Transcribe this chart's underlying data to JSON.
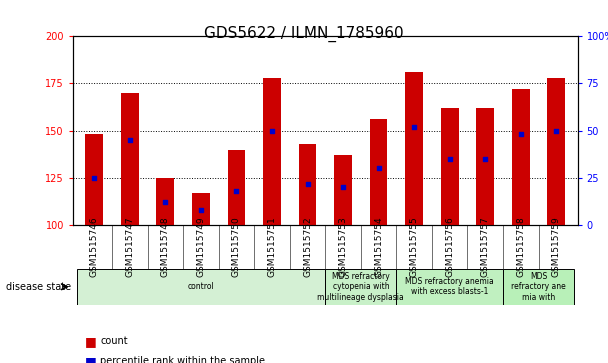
{
  "title": "GDS5622 / ILMN_1785960",
  "samples": [
    "GSM1515746",
    "GSM1515747",
    "GSM1515748",
    "GSM1515749",
    "GSM1515750",
    "GSM1515751",
    "GSM1515752",
    "GSM1515753",
    "GSM1515754",
    "GSM1515755",
    "GSM1515756",
    "GSM1515757",
    "GSM1515758",
    "GSM1515759"
  ],
  "counts": [
    148,
    170,
    125,
    117,
    140,
    178,
    143,
    137,
    156,
    181,
    162,
    162,
    172,
    178
  ],
  "percentile_ranks": [
    25,
    45,
    12,
    8,
    18,
    50,
    22,
    20,
    30,
    52,
    35,
    35,
    48,
    50
  ],
  "ylim_left": [
    100,
    200
  ],
  "ylim_right": [
    0,
    100
  ],
  "yticks_left": [
    100,
    125,
    150,
    175,
    200
  ],
  "yticks_right": [
    0,
    25,
    50,
    75,
    100
  ],
  "bar_color": "#cc0000",
  "dot_color": "#0000cc",
  "bar_width": 0.5,
  "bg_color": "#e8e8e8",
  "plot_bg": "#ffffff",
  "grid_color": "#000000",
  "disease_groups": [
    {
      "label": "control",
      "start": 0,
      "end": 7,
      "color": "#d4f0d4"
    },
    {
      "label": "MDS refractory\ncytopenia with\nmultilineage dysplasia",
      "start": 7,
      "end": 9,
      "color": "#c8f0c8"
    },
    {
      "label": "MDS refractory anemia\nwith excess blasts-1",
      "start": 9,
      "end": 12,
      "color": "#c0f0c0"
    },
    {
      "label": "MDS\nrefractory ane\nmia with",
      "start": 12,
      "end": 14,
      "color": "#b8f0b8"
    }
  ],
  "disease_state_label": "disease state",
  "legend_count_label": "count",
  "legend_percentile_label": "percentile rank within the sample",
  "title_fontsize": 11,
  "tick_fontsize": 7,
  "label_fontsize": 8
}
